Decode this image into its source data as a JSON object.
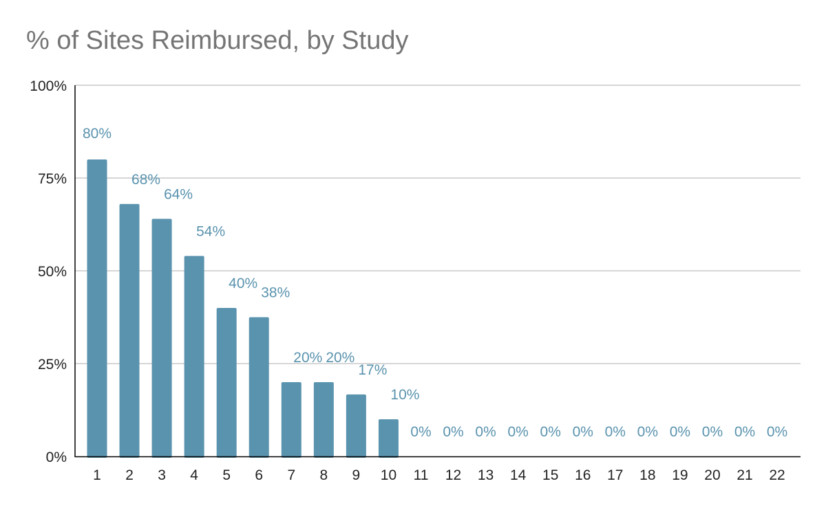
{
  "chart_data": {
    "type": "bar",
    "title": "% of Sites Reimbursed, by Study",
    "xlabel": "",
    "ylabel": "",
    "categories": [
      "1",
      "2",
      "3",
      "4",
      "5",
      "6",
      "7",
      "8",
      "9",
      "10",
      "11",
      "12",
      "13",
      "14",
      "15",
      "16",
      "17",
      "18",
      "19",
      "20",
      "21",
      "22"
    ],
    "values": [
      80,
      68,
      64,
      54,
      40,
      37.5,
      20,
      20,
      16.7,
      10,
      0,
      0,
      0,
      0,
      0,
      0,
      0,
      0,
      0,
      0,
      0,
      0
    ],
    "data_labels": [
      "80%",
      "68%",
      "64%",
      "54%",
      "40%",
      "38%",
      "20%",
      "20%",
      "17%",
      "10%",
      "0%",
      "0%",
      "0%",
      "0%",
      "0%",
      "0%",
      "0%",
      "0%",
      "0%",
      "0%",
      "0%",
      "0%"
    ],
    "ylim": [
      0,
      100
    ],
    "y_ticks": [
      0,
      25,
      50,
      75,
      100
    ],
    "y_tick_labels": [
      "0%",
      "25%",
      "50%",
      "75%",
      "100%"
    ],
    "grid": true,
    "legend": "none",
    "colors": {
      "bar": "#5a93ae",
      "data_label": "#5a93ae",
      "title": "#757575",
      "grid": "#c8c8c8",
      "axis": "#000000"
    }
  }
}
